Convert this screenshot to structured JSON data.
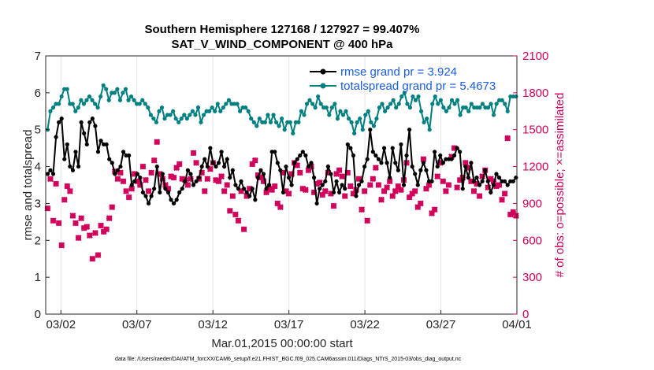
{
  "title_line1": "Southern Hemisphere 127168 / 127927 = 99.407%",
  "title_line2": "SAT_V_WIND_COMPONENT @ 400 hPa",
  "xlabel": "Mar.01,2015 00:00:00 start",
  "ylabel_left": "rmse and totalspread",
  "ylabel_right": "# of obs: o=possible; ×=assimilated",
  "footnote": "data file: /Users/raeder/DAI/ATM_forcXX/CAM6_setup/f.e21.FHIST_BGC.f09_025.CAM6assim.011/Diags_NTrS_2015-03/obs_diag_output.nc",
  "legend": {
    "rmse": "rmse grand pr = 3.924",
    "spread": "totalspread grand pr = 5.4673"
  },
  "colors": {
    "rmse": "#000000",
    "spread": "#008080",
    "obs": "#d1005a",
    "legend_text": "#1a5de0"
  },
  "chart_data": {
    "type": "line",
    "x_unit": "days since Mar.01,2015 00:00 (6-hourly)",
    "xlim": [
      0,
      31
    ],
    "xticks": [
      {
        "value": 1,
        "label": "03/02"
      },
      {
        "value": 6,
        "label": "03/07"
      },
      {
        "value": 11,
        "label": "03/12"
      },
      {
        "value": 16,
        "label": "03/17"
      },
      {
        "value": 21,
        "label": "03/22"
      },
      {
        "value": 26,
        "label": "03/27"
      },
      {
        "value": 31,
        "label": "04/01"
      }
    ],
    "ylim_left": [
      0,
      7
    ],
    "yticks_left": [
      "0",
      "1",
      "2",
      "3",
      "4",
      "5",
      "6",
      "7"
    ],
    "ylim_right": [
      0,
      2100
    ],
    "yticks_right": [
      "0",
      "300",
      "600",
      "900",
      "1200",
      "1500",
      "1800",
      "2100"
    ],
    "series": [
      {
        "name": "rmse",
        "axis": "left",
        "values": [
          3.8,
          3.9,
          3.8,
          4.8,
          5.2,
          5.3,
          4.2,
          4.6,
          4.0,
          3.9,
          4.4,
          4.0,
          5.2,
          4.9,
          4.6,
          5.2,
          5.3,
          5.1,
          4.4,
          4.7,
          4.6,
          4.6,
          4.2,
          4.1,
          3.8,
          3.9,
          4.0,
          4.4,
          4.3,
          4.3,
          3.5,
          3.6,
          3.8,
          3.7,
          3.3,
          3.2,
          3.0,
          3.2,
          3.4,
          4.0,
          3.3,
          3.8,
          3.4,
          3.3,
          3.1,
          3.0,
          3.1,
          3.3,
          3.4,
          3.6,
          3.9,
          3.8,
          3.5,
          3.6,
          3.7,
          4.0,
          4.2,
          4.0,
          4.5,
          4.1,
          4.0,
          4.1,
          4.4,
          4.0,
          4.2,
          3.7,
          3.9,
          3.5,
          3.4,
          3.6,
          3.4,
          3.3,
          3.2,
          3.4,
          3.1,
          3.7,
          3.9,
          3.8,
          3.4,
          3.5,
          4.4,
          4.4,
          4.1,
          3.9,
          3.3,
          4.0,
          3.7,
          3.5,
          4.1,
          4.2,
          4.3,
          4.4,
          4.3,
          4.0,
          4.1,
          3.7,
          3.0,
          3.4,
          3.5,
          3.6,
          4.0,
          3.8,
          3.3,
          3.6,
          3.3,
          3.5,
          3.4,
          4.6,
          4.5,
          4.3,
          3.2,
          3.5,
          3.6,
          4.0,
          4.2,
          5.0,
          4.4,
          4.3,
          4.2,
          4.1,
          4.5,
          4.1,
          3.7,
          4.5,
          4.1,
          3.9,
          4.6,
          3.5,
          4.3,
          5.0,
          4.0,
          3.8,
          3.5,
          3.9,
          4.1,
          3.9,
          3.6,
          3.6,
          4.4,
          4.0,
          4.3,
          4.1,
          4.2,
          4.2,
          4.2,
          4.3,
          4.5,
          4.4,
          3.4,
          4.0,
          3.7,
          4.1,
          3.6,
          3.7,
          3.5,
          3.6,
          3.9,
          3.6,
          3.3,
          3.5,
          3.8,
          3.7,
          3.6,
          3.6,
          3.5,
          3.6,
          3.6,
          3.7
        ]
      },
      {
        "name": "totalspread",
        "axis": "left",
        "values": [
          5.0,
          5.5,
          5.6,
          5.7,
          5.7,
          5.9,
          6.1,
          6.1,
          5.7,
          5.7,
          5.5,
          5.6,
          5.8,
          5.7,
          5.8,
          5.9,
          5.8,
          5.7,
          5.6,
          5.9,
          6.2,
          6.1,
          5.8,
          6.0,
          6.0,
          6.1,
          5.8,
          6.0,
          6.1,
          5.8,
          5.9,
          5.8,
          5.7,
          5.7,
          5.8,
          5.7,
          5.6,
          5.4,
          5.3,
          5.2,
          5.5,
          5.6,
          5.3,
          5.4,
          5.4,
          5.5,
          5.3,
          5.2,
          5.3,
          5.4,
          5.3,
          5.4,
          5.5,
          5.4,
          5.6,
          5.2,
          5.4,
          5.5,
          5.5,
          5.6,
          5.5,
          5.7,
          5.5,
          5.6,
          5.7,
          5.8,
          5.7,
          5.7,
          5.7,
          5.5,
          5.6,
          5.6,
          5.5,
          5.3,
          5.2,
          5.1,
          5.3,
          5.2,
          5.2,
          5.4,
          5.2,
          5.4,
          5.2,
          5.1,
          5.3,
          5.0,
          5.2,
          5.2,
          4.9,
          5.2,
          5.2,
          5.5,
          5.4,
          5.7,
          5.8,
          5.7,
          5.6,
          5.9,
          5.7,
          5.6,
          5.6,
          5.4,
          5.6,
          5.7,
          5.3,
          5.5,
          5.4,
          5.5,
          5.3,
          5.2,
          4.9,
          5.2,
          5.3,
          5.0,
          5.4,
          5.5,
          5.2,
          5.1,
          5.3,
          5.6,
          5.7,
          5.5,
          5.6,
          5.7,
          5.8,
          5.6,
          5.7,
          5.9,
          6.0,
          5.7,
          5.6,
          5.9,
          5.8,
          5.9,
          5.5,
          5.2,
          5.3,
          5.0,
          5.7,
          5.9,
          5.7,
          5.8,
          5.6,
          5.5,
          5.6,
          5.8,
          5.7,
          5.8,
          5.4,
          5.6,
          5.6,
          5.5,
          5.7,
          5.6,
          5.6,
          5.6,
          5.7,
          5.6,
          5.6,
          5.7,
          5.4,
          5.7,
          5.8,
          5.8,
          5.7,
          5.5,
          5.9,
          5.9,
          5.9
        ]
      },
      {
        "name": "obs_possible",
        "axis": "right",
        "marker": "o",
        "values": [
          860,
          1100,
          760,
          1060,
          740,
          560,
          930,
          1040,
          1000,
          800,
          740,
          620,
          780,
          700,
          710,
          640,
          450,
          660,
          480,
          720,
          670,
          690,
          780,
          870,
          1160,
          1100,
          1150,
          1080,
          1000,
          950,
          1020,
          1140,
          1080,
          1050,
          1200,
          1090,
          1000,
          1150,
          1250,
          1400,
          1140,
          1100,
          1050,
          1020,
          1120,
          1110,
          1190,
          1220,
          1100,
          1090,
          1050,
          1100,
          1310,
          1230,
          1100,
          1150,
          1000,
          1100,
          1180,
          1230,
          1090,
          1080,
          1120,
          1000,
          1050,
          840,
          960,
          810,
          760,
          1000,
          690,
          960,
          1020,
          1220,
          1250,
          1130,
          1110,
          1080,
          990,
          1020,
          1010,
          1040,
          900,
          870,
          1150,
          1000,
          980,
          1140,
          1230,
          1210,
          1150,
          1020,
          1010,
          1170,
          1200,
          990,
          1060,
          1070,
          970,
          1000,
          1150,
          980,
          880,
          1140,
          1170,
          1120,
          960,
          1150,
          1040,
          980,
          1010,
          1100,
          850,
          1000,
          760,
          1050,
          1100,
          1190,
          1050,
          930,
          1000,
          1030,
          1080,
          960,
          1000,
          1040,
          1010,
          1090,
          1230,
          950,
          980,
          1000,
          870,
          900,
          1260,
          1020,
          1050,
          820,
          850,
          1120,
          1230,
          1080,
          1000,
          1050,
          1280,
          1350,
          1030,
          1090,
          1110,
          1230,
          1190,
          1080,
          1000,
          1060,
          960,
          1120,
          1170,
          1030,
          1100,
          1080,
          1040,
          1050,
          930,
          980,
          1430,
          810,
          830,
          800
        ]
      },
      {
        "name": "obs_assimilated",
        "axis": "right",
        "marker": "x",
        "values": [
          860,
          1100,
          760,
          1060,
          740,
          560,
          930,
          1040,
          1000,
          800,
          740,
          620,
          780,
          700,
          710,
          640,
          450,
          660,
          480,
          720,
          670,
          690,
          780,
          870,
          1160,
          1100,
          1150,
          1080,
          1000,
          950,
          1020,
          1140,
          1080,
          1050,
          1200,
          1090,
          1000,
          1150,
          1250,
          1400,
          1140,
          1100,
          1050,
          1020,
          1120,
          1110,
          1190,
          1220,
          1100,
          1090,
          1050,
          1100,
          1310,
          1230,
          1100,
          1150,
          1000,
          1100,
          1180,
          1230,
          1090,
          1080,
          1120,
          1000,
          1050,
          840,
          960,
          810,
          760,
          1000,
          690,
          960,
          1020,
          1220,
          1250,
          1130,
          1110,
          1080,
          990,
          1020,
          1010,
          1040,
          900,
          870,
          1150,
          1000,
          980,
          1140,
          1230,
          1210,
          1150,
          1020,
          1010,
          1170,
          1200,
          990,
          1060,
          1070,
          970,
          1000,
          1150,
          980,
          880,
          1140,
          1170,
          1120,
          960,
          1150,
          1040,
          980,
          1010,
          1100,
          850,
          1000,
          760,
          1050,
          1100,
          1190,
          1050,
          930,
          1000,
          1030,
          1080,
          960,
          1000,
          1040,
          1010,
          1090,
          1230,
          950,
          980,
          1000,
          870,
          900,
          1260,
          1020,
          1050,
          820,
          850,
          1120,
          1230,
          1080,
          1000,
          1050,
          1280,
          1350,
          1030,
          1090,
          1110,
          1230,
          1190,
          1080,
          1000,
          1060,
          960,
          1120,
          1170,
          1030,
          1100,
          1080,
          1040,
          1050,
          930,
          980,
          1430,
          810,
          830,
          800
        ]
      }
    ]
  }
}
